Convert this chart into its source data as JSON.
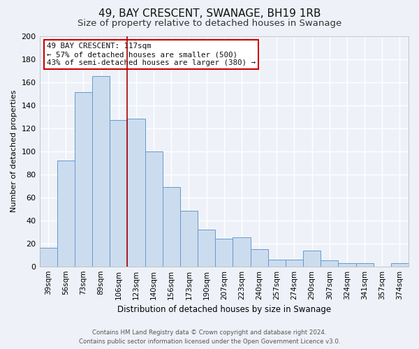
{
  "title": "49, BAY CRESCENT, SWANAGE, BH19 1RB",
  "subtitle": "Size of property relative to detached houses in Swanage",
  "xlabel": "Distribution of detached houses by size in Swanage",
  "ylabel": "Number of detached properties",
  "bar_labels": [
    "39sqm",
    "56sqm",
    "73sqm",
    "89sqm",
    "106sqm",
    "123sqm",
    "140sqm",
    "156sqm",
    "173sqm",
    "190sqm",
    "207sqm",
    "223sqm",
    "240sqm",
    "257sqm",
    "274sqm",
    "290sqm",
    "307sqm",
    "324sqm",
    "341sqm",
    "357sqm",
    "374sqm"
  ],
  "bar_values": [
    16,
    92,
    151,
    165,
    127,
    128,
    100,
    69,
    48,
    32,
    24,
    25,
    15,
    6,
    6,
    14,
    5,
    3,
    3,
    0,
    3
  ],
  "bar_color": "#ccdcef",
  "bar_edge_color": "#6699cc",
  "ylim": [
    0,
    200
  ],
  "yticks": [
    0,
    20,
    40,
    60,
    80,
    100,
    120,
    140,
    160,
    180,
    200
  ],
  "redline_x": 5.0,
  "annotation_title": "49 BAY CRESCENT: 117sqm",
  "annotation_line1": "← 57% of detached houses are smaller (500)",
  "annotation_line2": "43% of semi-detached houses are larger (380) →",
  "annotation_box_color": "#ffffff",
  "annotation_box_edge": "#cc0000",
  "redline_color": "#aa0000",
  "footer_line1": "Contains HM Land Registry data © Crown copyright and database right 2024.",
  "footer_line2": "Contains public sector information licensed under the Open Government Licence v3.0.",
  "bg_color": "#eef2f8",
  "grid_color": "#ffffff",
  "title_fontsize": 11,
  "subtitle_fontsize": 9.5
}
